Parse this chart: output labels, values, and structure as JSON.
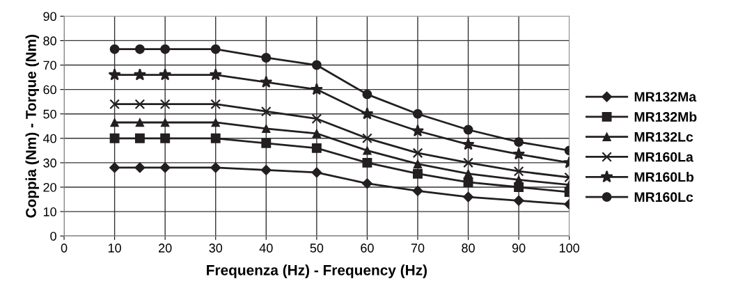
{
  "chart_data": {
    "type": "line",
    "xlabel": "Frequenza (Hz) - Frequency (Hz)",
    "ylabel": "Coppia (Nm) - Torque (Nm)",
    "x": [
      10,
      15,
      20,
      30,
      40,
      50,
      60,
      70,
      80,
      90,
      100
    ],
    "xlim": [
      0,
      100
    ],
    "xticks": [
      0,
      10,
      20,
      30,
      40,
      50,
      60,
      70,
      80,
      90,
      100
    ],
    "ylim": [
      0,
      90
    ],
    "yticks": [
      0,
      10,
      20,
      30,
      40,
      50,
      60,
      70,
      80,
      90
    ],
    "grid": true,
    "legend": "right",
    "line_style": "solid",
    "series": [
      {
        "name": "MR132Ma",
        "color": "#231f20",
        "marker": "diamond",
        "values": [
          28,
          28,
          28,
          28,
          27,
          26,
          21.5,
          18.5,
          16,
          14.5,
          13
        ]
      },
      {
        "name": "MR132Mb",
        "color": "#231f20",
        "marker": "square",
        "values": [
          40,
          40,
          40,
          40,
          38,
          36,
          30,
          25.5,
          22,
          20,
          18
        ]
      },
      {
        "name": "MR132Lc",
        "color": "#231f20",
        "marker": "triangle",
        "values": [
          46.5,
          46.5,
          46.5,
          46.5,
          44,
          42,
          35,
          29.5,
          25.5,
          23,
          21
        ]
      },
      {
        "name": "MR160La",
        "color": "#231f20",
        "marker": "cross",
        "values": [
          54,
          54,
          54,
          54,
          51,
          48,
          40,
          34,
          30,
          26.5,
          24
        ]
      },
      {
        "name": "MR160Lb",
        "color": "#231f20",
        "marker": "star",
        "values": [
          66,
          66,
          66,
          66,
          63,
          60,
          50,
          43,
          37.5,
          33.5,
          30
        ]
      },
      {
        "name": "MR160Lc",
        "color": "#231f20",
        "marker": "circle",
        "values": [
          76.5,
          76.5,
          76.5,
          76.5,
          73,
          70,
          58,
          50,
          43.5,
          38.5,
          35
        ]
      }
    ]
  }
}
